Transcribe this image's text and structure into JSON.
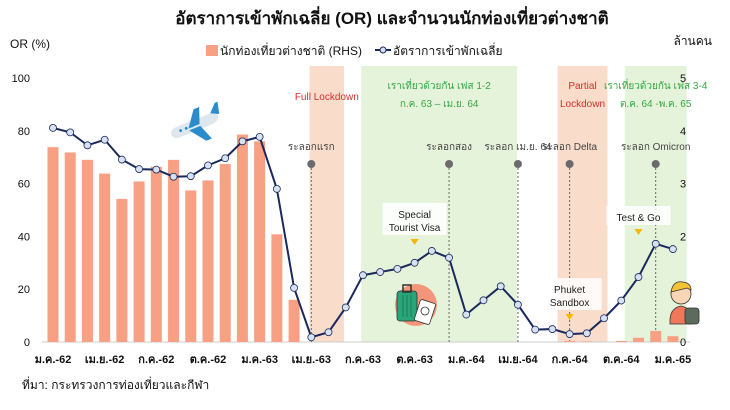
{
  "chart_data": {
    "type": "bar+line",
    "title": "อัตราการเข้าพักเฉลี่ย (OR) และจำนวนนักท่องเที่ยวต่างชาติ",
    "ylabel_left": "OR (%)",
    "ylabel_right": "ล้านคน",
    "ylim_left": [
      0,
      100
    ],
    "ylim_right": [
      0,
      5
    ],
    "left_ticks": [
      "0",
      "20",
      "40",
      "60",
      "80",
      "100"
    ],
    "right_ticks": [
      "0",
      "1",
      "2",
      "3",
      "4",
      "5"
    ],
    "x_tick_labels": [
      "ม.ค.-62",
      "เม.ย.-62",
      "ก.ค.-62",
      "ต.ค.-62",
      "ม.ค.-63",
      "เม.ย.-63",
      "ก.ค.-63",
      "ต.ค.-63",
      "ม.ค.-64",
      "เม.ย.-64",
      "ก.ค.-64",
      "ต.ค.-64",
      "ม.ค.-65"
    ],
    "legend_position": "top-center",
    "series": [
      {
        "name": "นักท่องเที่ยวต่างชาติ (RHS)",
        "type": "bar",
        "axis": "right",
        "color": "#f7a083",
        "values": [
          3.69,
          3.59,
          3.45,
          3.19,
          2.71,
          3.04,
          3.32,
          3.45,
          2.87,
          3.06,
          3.37,
          3.93,
          3.8,
          2.04,
          0.8,
          0,
          0,
          0,
          0,
          0,
          0,
          0,
          0,
          0,
          0,
          0,
          0,
          0,
          0,
          0,
          0.02,
          0.01,
          0,
          0.02,
          0.08,
          0.21,
          0.11
        ]
      },
      {
        "name": "อัตราการเข้าพักเฉลี่ย",
        "type": "line",
        "axis": "left",
        "color": "#1b2a5c",
        "values": [
          81.1,
          79.4,
          74.5,
          76.6,
          69.1,
          65.5,
          65.3,
          62.6,
          62.8,
          66.9,
          69.6,
          76.0,
          77.7,
          58.0,
          20.5,
          1.8,
          3.7,
          13.1,
          25.3,
          26.5,
          27.7,
          30.0,
          34.5,
          31.9,
          10.4,
          15.8,
          21.1,
          14.1,
          4.7,
          4.9,
          3.0,
          3.3,
          9.0,
          15.7,
          24.6,
          37.2,
          35.2
        ]
      }
    ],
    "shaded_periods": [
      {
        "label": "Full Lockdown",
        "sub": "",
        "kind": "lockdown",
        "start": 14.9,
        "end": 16.9
      },
      {
        "label": "เราเที่ยวด้วยกัน เฟส 1-2",
        "sub": "ก.ค. 63 – เม.ย. 64",
        "kind": "promo",
        "start": 17.9,
        "end": 26.95
      },
      {
        "label": "Partial",
        "sub": "Lockdown",
        "kind": "lockdown",
        "start": 29.3,
        "end": 32.2
      },
      {
        "label": "เราเที่ยวด้วยกัน เฟส 3-4",
        "sub": "ต.ค. 64 -พ.ค. 65",
        "kind": "promo",
        "start": 33.2,
        "end": 36.8
      }
    ],
    "waves": [
      {
        "label": "ระลอกแรก",
        "index": 15
      },
      {
        "label": "ระลอกสอง",
        "index": 23
      },
      {
        "label": "ระลอก เม.ย. 64",
        "index": 27
      },
      {
        "label": "ระลอก Delta",
        "index": 30
      },
      {
        "label": "ระลอก Omicron",
        "index": 35
      }
    ],
    "annotations": [
      {
        "lines": [
          "Special",
          "Tourist Visa"
        ],
        "index": 21
      },
      {
        "lines": [
          "Phuket",
          "Sandbox"
        ],
        "index": 30
      },
      {
        "lines": [
          "Test & Go"
        ],
        "index": 34
      }
    ],
    "colors": {
      "lockdown": "#fadcca",
      "promo": "#e5f3da",
      "lockdown_text": "#d0302f",
      "promo_text": "#34a845",
      "marker_fill": "#d6e1f2",
      "wave_dot": "#6b6b6b",
      "triangle": "#f5b800"
    }
  },
  "source": "ที่มา: กระทรวงการท่องเที่ยวและกีฬา",
  "icons": [
    "airplane-icon",
    "suitcase-passport-icon",
    "traveler-icon"
  ]
}
